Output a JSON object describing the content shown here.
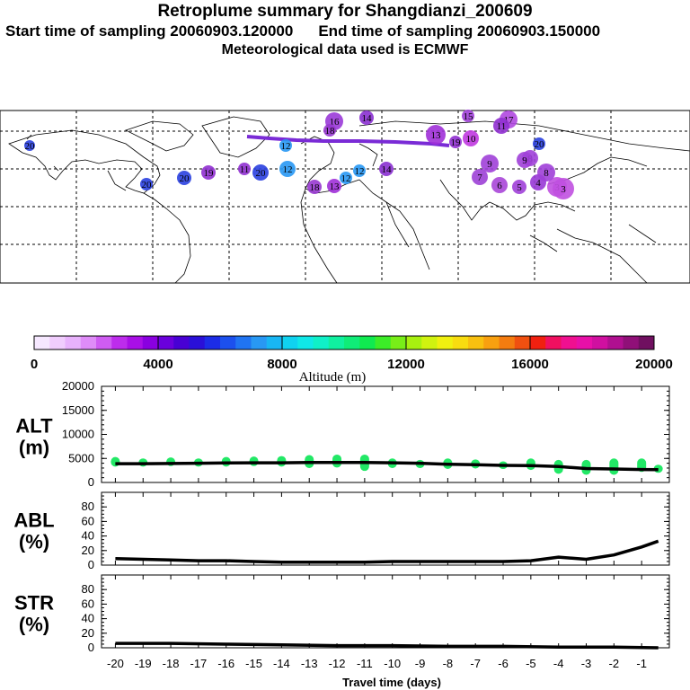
{
  "header": {
    "title": "Retroplume summary for Shangdianzi_200609",
    "start_label": "Start time of sampling 20060903.120000",
    "end_label": "End time of sampling 20060903.150000",
    "met_label": "Meteorological data used is ECMWF"
  },
  "colors": {
    "trajectory": "#7a2bd6",
    "alt_points": "#22e866"
  },
  "colorbar": {
    "ticks": [
      "0",
      "4000",
      "8000",
      "12000",
      "16000",
      "20000"
    ],
    "label": "Altitude (m)",
    "colors": [
      "#f6e8ff",
      "#f0cdfd",
      "#e8b2fc",
      "#df8cf8",
      "#cf5cf2",
      "#bd2cec",
      "#a90fe6",
      "#8a00e0",
      "#6a00dc",
      "#4800d4",
      "#2a10d8",
      "#1c2ce6",
      "#1c50ee",
      "#2074f2",
      "#2898f4",
      "#18b6f4",
      "#10d2f0",
      "#10e8e8",
      "#10f0c8",
      "#10f0a0",
      "#10ec78",
      "#10ea50",
      "#3cec28",
      "#78ee18",
      "#a8f010",
      "#d0f210",
      "#f0f010",
      "#f8dc10",
      "#f8c010",
      "#f8a010",
      "#f47c10",
      "#f05010",
      "#f02010",
      "#f01060",
      "#f01090",
      "#e810a8",
      "#d010a0",
      "#b01090",
      "#901078",
      "#701060"
    ]
  },
  "map_labels": [
    {
      "t": "16",
      "c": "#9a3ad8"
    },
    {
      "t": "14",
      "c": "#8a30d0"
    },
    {
      "t": "15",
      "c": "#a040d8"
    },
    {
      "t": "17",
      "c": "#b048e0"
    },
    {
      "t": "18",
      "c": "#9838d0"
    },
    {
      "t": "13",
      "c": "#a030d8"
    },
    {
      "t": "12",
      "c": "#2898f4"
    },
    {
      "t": "11",
      "c": "#9030d0"
    },
    {
      "t": "10",
      "c": "#c038e0"
    },
    {
      "t": "9",
      "c": "#a040d8"
    },
    {
      "t": "8",
      "c": "#a040d8"
    },
    {
      "t": "7",
      "c": "#9c40d6"
    },
    {
      "t": "6",
      "c": "#a846d8"
    },
    {
      "t": "5",
      "c": "#a040d8"
    },
    {
      "t": "4",
      "c": "#9838d6"
    },
    {
      "t": "3",
      "c": "#c050e0"
    },
    {
      "t": "20",
      "c": "#2a40e0"
    },
    {
      "t": "19",
      "c": "#9030d0"
    }
  ],
  "chart_data": [
    {
      "type": "line",
      "panel": "ALT",
      "ylabel_top": "ALT",
      "ylabel_bottom": "(m)",
      "ylim": [
        0,
        20000
      ],
      "y_ticks": [
        "20000",
        "15000",
        "10000",
        "5000",
        "0"
      ],
      "xlim": [
        -20.5,
        0
      ],
      "x": [
        -20,
        -19,
        -18,
        -17,
        -16,
        -15,
        -14,
        -13,
        -12,
        -11,
        -10,
        -9,
        -8,
        -7,
        -6,
        -5,
        -4,
        -3,
        -2,
        -1,
        -0.4
      ],
      "values": [
        3900,
        3900,
        3950,
        4000,
        4050,
        4100,
        4100,
        4150,
        4150,
        4150,
        4100,
        4000,
        3800,
        3700,
        3550,
        3500,
        3300,
        2900,
        2800,
        2700,
        2650
      ],
      "scatter": [
        {
          "x": -20,
          "lo": 3300,
          "hi": 5300
        },
        {
          "x": -19,
          "lo": 3300,
          "hi": 5000
        },
        {
          "x": -18,
          "lo": 3400,
          "hi": 5200
        },
        {
          "x": -17,
          "lo": 3300,
          "hi": 5000
        },
        {
          "x": -16,
          "lo": 3300,
          "hi": 5300
        },
        {
          "x": -15,
          "lo": 3400,
          "hi": 5400
        },
        {
          "x": -14,
          "lo": 3300,
          "hi": 5500
        },
        {
          "x": -13,
          "lo": 3000,
          "hi": 5700
        },
        {
          "x": -12,
          "lo": 3100,
          "hi": 5800
        },
        {
          "x": -11,
          "lo": 2400,
          "hi": 5800
        },
        {
          "x": -10,
          "lo": 3000,
          "hi": 5000
        },
        {
          "x": -9,
          "lo": 3000,
          "hi": 4700
        },
        {
          "x": -8,
          "lo": 2800,
          "hi": 5000
        },
        {
          "x": -7,
          "lo": 2900,
          "hi": 4800
        },
        {
          "x": -6,
          "lo": 2800,
          "hi": 4400
        },
        {
          "x": -5,
          "lo": 2600,
          "hi": 5000
        },
        {
          "x": -4,
          "lo": 1800,
          "hi": 4700
        },
        {
          "x": -3,
          "lo": 1600,
          "hi": 4700
        },
        {
          "x": -2,
          "lo": 1600,
          "hi": 5000
        },
        {
          "x": -1,
          "lo": 2200,
          "hi": 5000
        },
        {
          "x": -0.4,
          "lo": 2000,
          "hi": 3700
        }
      ]
    },
    {
      "type": "line",
      "panel": "ABL",
      "ylabel_top": "ABL",
      "ylabel_bottom": "(%)",
      "ylim": [
        0,
        100
      ],
      "y_ticks": [
        "80",
        "60",
        "40",
        "20",
        "0"
      ],
      "xlim": [
        -20.5,
        0
      ],
      "x": [
        -20,
        -19,
        -18,
        -17,
        -16,
        -15,
        -14,
        -13,
        -12,
        -11,
        -10,
        -9,
        -8,
        -7,
        -6,
        -5,
        -4,
        -3,
        -2,
        -1,
        -0.4
      ],
      "values": [
        9,
        8,
        7,
        6,
        6,
        5,
        4,
        4,
        4,
        4,
        5,
        5,
        5,
        5,
        5,
        6,
        11,
        8,
        14,
        25,
        33
      ]
    },
    {
      "type": "line",
      "panel": "STR",
      "ylabel_top": "STR",
      "ylabel_bottom": "(%)",
      "ylim": [
        0,
        100
      ],
      "y_ticks": [
        "80",
        "60",
        "40",
        "20",
        "0"
      ],
      "xlim": [
        -20.5,
        0
      ],
      "x_ticks": [
        "-20",
        "-19",
        "-18",
        "-17",
        "-16",
        "-15",
        "-14",
        "-13",
        "-12",
        "-11",
        "-10",
        "-9",
        "-8",
        "-7",
        "-6",
        "-5",
        "-4",
        "-3",
        "-2",
        "-1"
      ],
      "xlabel": "Travel time (days)",
      "x": [
        -20,
        -18,
        -16,
        -14,
        -12,
        -10,
        -8,
        -6,
        -4,
        -2,
        -0.4
      ],
      "values": [
        6,
        6,
        5,
        4,
        3,
        3,
        2,
        2,
        1,
        1,
        0
      ]
    }
  ]
}
